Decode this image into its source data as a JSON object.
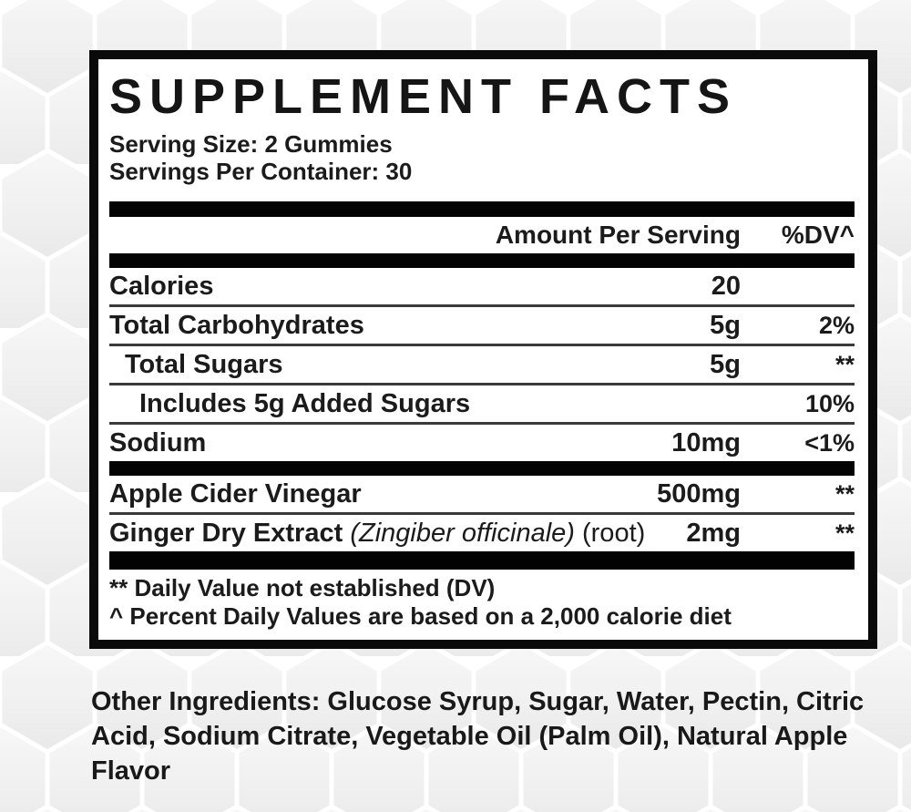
{
  "panel": {
    "title": "SUPPLEMENT FACTS",
    "serving_size": "Serving Size: 2 Gummies",
    "servings_per_container": "Servings Per Container: 30",
    "columns": {
      "amount": "Amount Per Serving",
      "dv": "%DV^"
    },
    "rows": [
      {
        "name_parts": [
          {
            "text": "Calories",
            "style": "bold"
          }
        ],
        "indent": 0,
        "amount": "20",
        "dv": "",
        "divider": "thin"
      },
      {
        "name_parts": [
          {
            "text": "Total Carbohydrates",
            "style": "bold"
          }
        ],
        "indent": 0,
        "amount": "5g",
        "dv": "2%",
        "divider": "thin"
      },
      {
        "name_parts": [
          {
            "text": "Total Sugars",
            "style": "bold"
          }
        ],
        "indent": 1,
        "amount": "5g",
        "dv": "**",
        "divider": "thin"
      },
      {
        "name_parts": [
          {
            "text": "Includes 5g Added Sugars",
            "style": "bold"
          }
        ],
        "indent": 2,
        "amount": "",
        "dv": "10%",
        "divider": "thin"
      },
      {
        "name_parts": [
          {
            "text": "Sodium",
            "style": "bold"
          }
        ],
        "indent": 0,
        "amount": "10mg",
        "dv": "<1%",
        "divider": "thick"
      },
      {
        "name_parts": [
          {
            "text": "Apple Cider Vinegar",
            "style": "bold"
          }
        ],
        "indent": 0,
        "amount": "500mg",
        "dv": "**",
        "divider": "thin"
      },
      {
        "name_parts": [
          {
            "text": "Ginger Dry Extract ",
            "style": "bold"
          },
          {
            "text": "(Zingiber officinale)",
            "style": "italic"
          },
          {
            "text": " (root)",
            "style": "regular"
          }
        ],
        "indent": 0,
        "amount": "2mg",
        "dv": "**",
        "divider": "thick-lg"
      }
    ],
    "footnotes": [
      "** Daily Value not established (DV)",
      "^ Percent Daily Values are based on a 2,000 calorie diet"
    ]
  },
  "other_ingredients": {
    "label": "Other Ingredients:",
    "text": "Glucose Syrup, Sugar, Water, Pectin, Citric Acid, Sodium Citrate, Vegetable Oil (Palm Oil), Natural Apple Flavor"
  },
  "colors": {
    "panel_border": "#0a0a0a",
    "thick_bar": "#030303",
    "thin_rule": "#3a3a3a",
    "text": "#1b1b1b",
    "hex_fill_light": "#f5f5f5",
    "hex_fill_dark": "#e8e8e8",
    "background": "#ffffff"
  }
}
